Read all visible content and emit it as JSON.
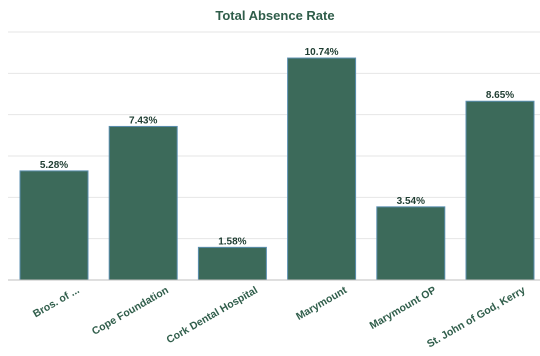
{
  "chart_data": {
    "type": "bar",
    "title": "Total Absence Rate",
    "categories": [
      "Bros. of ...",
      "Cope Foundation",
      "Cork Dental Hospital",
      "Marymount",
      "Marymount OP",
      "St. John of God, Kerry"
    ],
    "values": [
      5.28,
      7.43,
      1.58,
      10.74,
      3.54,
      8.65
    ],
    "data_labels": [
      "5.28%",
      "7.43%",
      "1.58%",
      "10.74%",
      "3.54%",
      "8.65%"
    ],
    "ylim": [
      0,
      12
    ],
    "grid": true,
    "legend": "none",
    "bar_color": "#3c6a5a",
    "bar_stroke": "#5b8fb0"
  }
}
